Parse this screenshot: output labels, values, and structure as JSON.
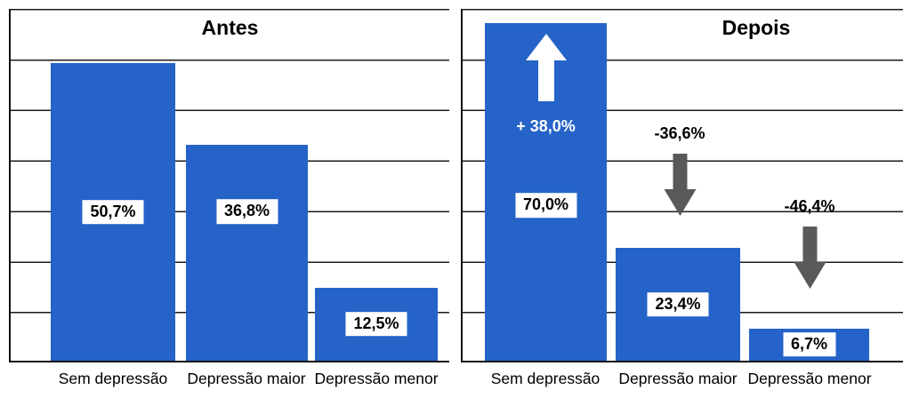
{
  "figure": {
    "background": "#ffffff"
  },
  "chart_data": [
    {
      "type": "bar",
      "title": "Antes",
      "categories": [
        "Sem depressão",
        "Depressão maior",
        "Depressão menor"
      ],
      "values": [
        50.7,
        36.8,
        12.5
      ],
      "value_labels": [
        "50,7%",
        "36,8%",
        "12,5%"
      ],
      "xlabel": "",
      "ylabel": "",
      "ylim": [
        0,
        60
      ],
      "grid": true,
      "legend": false,
      "bar_color": "#2563c8"
    },
    {
      "type": "bar",
      "title": "Depois",
      "categories": [
        "Sem depressão",
        "Depressão maior",
        "Depressão menor"
      ],
      "values": [
        70.0,
        23.4,
        6.7
      ],
      "value_labels": [
        "70,0%",
        "23,4%",
        "6,7%"
      ],
      "xlabel": "",
      "ylabel": "",
      "ylim": [
        0,
        73
      ],
      "grid": true,
      "legend": false,
      "bar_color": "#2563c8",
      "annotations": [
        {
          "target": "Sem depressão",
          "text": "+ 38,0%",
          "direction": "up",
          "text_color": "#ffffff",
          "arrow_color": "#ffffff"
        },
        {
          "target": "Depressão maior",
          "text": "-36,6%",
          "direction": "down",
          "text_color": "#000000",
          "arrow_color": "#595959"
        },
        {
          "target": "Depressão menor",
          "text": "-46,4%",
          "direction": "down",
          "text_color": "#000000",
          "arrow_color": "#595959"
        }
      ]
    }
  ]
}
